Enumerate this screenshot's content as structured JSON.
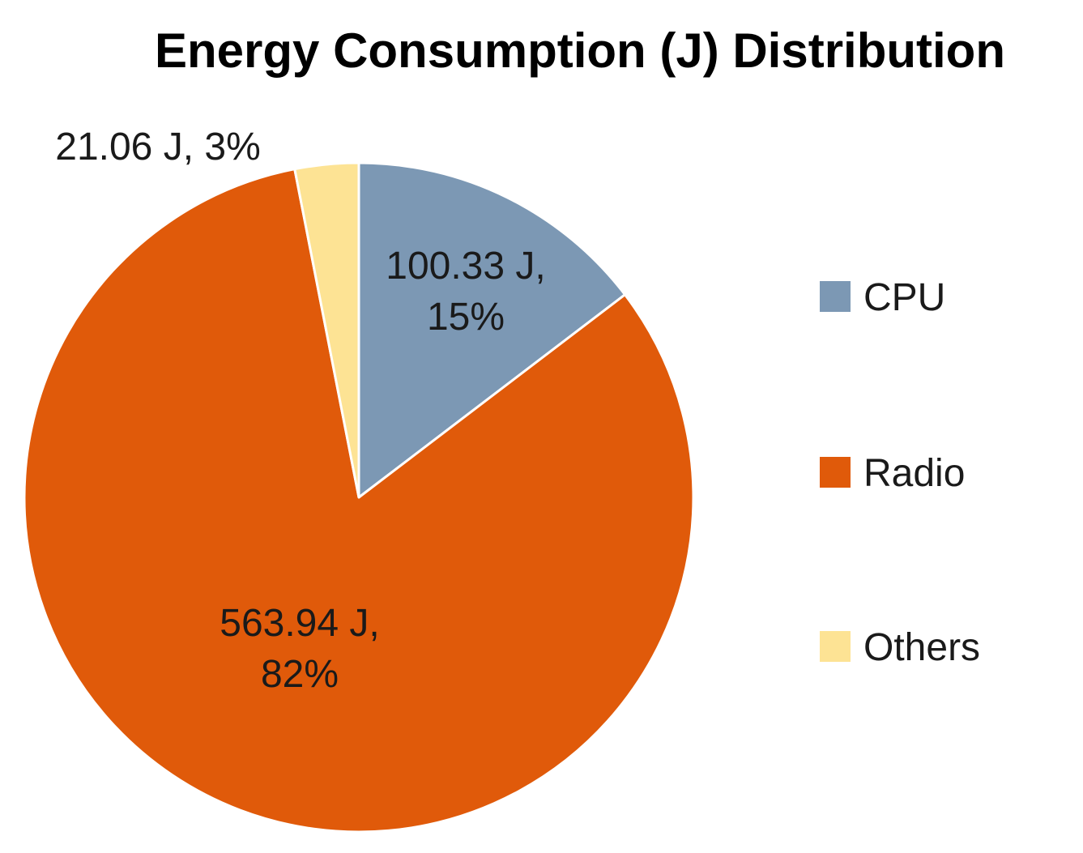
{
  "chart_data": {
    "type": "pie",
    "title": "Energy Consumption (J) Distribution",
    "slices": [
      {
        "name": "CPU",
        "value": 100.33,
        "percent": 15,
        "color": "#7c98b4",
        "label_line1": "100.33 J,",
        "label_line2": "15%"
      },
      {
        "name": "Radio",
        "value": 563.94,
        "percent": 82,
        "color": "#e05a0a",
        "label_line1": "563.94 J,",
        "label_line2": "82%"
      },
      {
        "name": "Others",
        "value": 21.06,
        "percent": 3,
        "color": "#fde394",
        "label_line1": "21.06 J, 3%",
        "label_line2": ""
      }
    ],
    "legend": {
      "position": "right"
    }
  }
}
